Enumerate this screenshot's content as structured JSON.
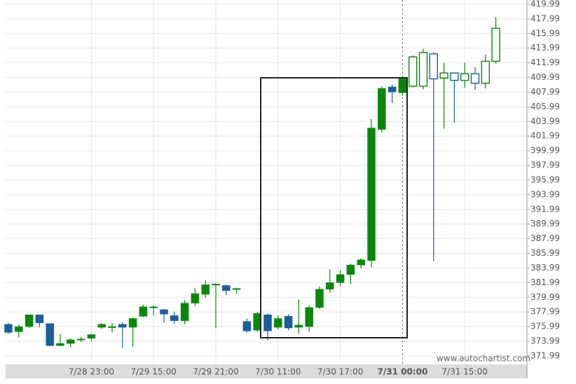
{
  "chart_data": {
    "type": "candlestick",
    "watermark": "www.autochartist.com",
    "categories": [
      null,
      null,
      null,
      null,
      null,
      null,
      null,
      null,
      "7/28 23:00",
      null,
      null,
      null,
      null,
      null,
      "7/29 15:00",
      null,
      null,
      null,
      null,
      null,
      "7/29 21:00",
      null,
      null,
      null,
      null,
      null,
      "7/30 11:00",
      null,
      null,
      null,
      null,
      null,
      "7/30 17:00",
      null,
      null,
      null,
      null,
      null,
      "7/31 00:00",
      null,
      null,
      null,
      null,
      null,
      "7/31 15:00",
      null,
      null,
      null
    ],
    "open": [
      376.3,
      375.3,
      376.0,
      377.6,
      376.4,
      373.4,
      373.7,
      374.2,
      374.4,
      375.9,
      375.9,
      376.3,
      375.9,
      377.4,
      378.6,
      378.3,
      377.5,
      376.8,
      379.2,
      380.4,
      381.7,
      381.6,
      381.1,
      376.7,
      375.5,
      377.6,
      375.9,
      377.4,
      375.9,
      376.0,
      378.6,
      381.1,
      382.0,
      383.1,
      384.4,
      385.0,
      402.9,
      408.7,
      407.9,
      408.8,
      408.8,
      413.2,
      409.9,
      410.6,
      409.6,
      410.5,
      409.2,
      412.2
    ],
    "high": [
      376.5,
      376.3,
      377.6,
      377.6,
      376.4,
      375.0,
      374.4,
      374.6,
      375.0,
      376.5,
      376.5,
      376.6,
      377.2,
      379.0,
      378.9,
      378.4,
      378.0,
      379.6,
      381.2,
      382.3,
      381.9,
      381.7,
      381.3,
      377.1,
      378.0,
      377.8,
      377.5,
      377.7,
      379.7,
      378.9,
      381.5,
      383.8,
      383.7,
      384.6,
      385.3,
      404.3,
      408.8,
      409.0,
      410.2,
      413.0,
      413.9,
      413.4,
      412.0,
      410.6,
      412.0,
      411.4,
      413.1,
      418.2
    ],
    "low": [
      375.0,
      374.5,
      375.8,
      375.9,
      373.3,
      373.3,
      373.2,
      373.9,
      374.0,
      375.7,
      375.2,
      373.1,
      373.2,
      377.3,
      377.5,
      376.5,
      376.4,
      376.3,
      378.8,
      379.9,
      375.8,
      380.3,
      380.5,
      375.2,
      375.3,
      374.1,
      375.6,
      375.5,
      375.0,
      375.3,
      378.4,
      380.6,
      381.5,
      381.8,
      383.9,
      384.1,
      402.5,
      406.5,
      407.5,
      408.6,
      408.4,
      384.9,
      403.0,
      403.8,
      408.6,
      408.3,
      408.5,
      411.9
    ],
    "close": [
      375.2,
      376.0,
      377.6,
      376.5,
      373.4,
      373.7,
      374.2,
      374.3,
      374.9,
      376.3,
      376.0,
      375.9,
      377.1,
      378.7,
      378.7,
      377.7,
      376.8,
      379.2,
      380.5,
      381.7,
      381.8,
      380.9,
      381.2,
      375.4,
      377.8,
      375.4,
      377.1,
      375.8,
      376.2,
      378.6,
      381.1,
      382.0,
      383.1,
      384.4,
      385.1,
      403.1,
      408.5,
      408.0,
      409.9,
      412.8,
      413.4,
      409.8,
      410.6,
      409.6,
      410.5,
      409.2,
      412.2,
      416.7
    ],
    "up_color": "#0a870a",
    "down_color": "#1a5e9e",
    "ylim": [
      370.84,
      420.56
    ],
    "yticks": [
      371.99,
      373.99,
      375.99,
      377.99,
      379.99,
      381.99,
      383.99,
      385.99,
      387.99,
      389.99,
      391.99,
      393.99,
      395.99,
      397.99,
      399.99,
      401.99,
      403.99,
      405.99,
      407.99,
      409.99,
      411.99,
      413.99,
      415.99,
      417.99,
      419.99
    ],
    "grid": true
  }
}
